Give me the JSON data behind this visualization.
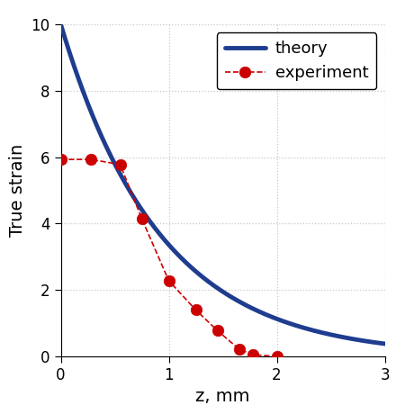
{
  "theory_x_start": 0,
  "theory_x_end": 3,
  "theory_amplitude": 10,
  "theory_decay": 1.09,
  "exp_x": [
    0.0,
    0.28,
    0.55,
    0.75,
    1.0,
    1.25,
    1.45,
    1.65,
    1.78,
    2.0
  ],
  "exp_y": [
    5.93,
    5.93,
    5.78,
    4.15,
    2.28,
    1.4,
    0.78,
    0.22,
    0.05,
    0.0
  ],
  "theory_color": "#1f3d8f",
  "exp_color": "#cc0000",
  "theory_linewidth": 3.5,
  "exp_linewidth": 1.2,
  "marker_size": 9,
  "xlabel": "z, mm",
  "ylabel": "True strain",
  "xlim": [
    0,
    3
  ],
  "ylim": [
    0,
    10
  ],
  "xticks": [
    0,
    1,
    2,
    3
  ],
  "yticks": [
    0,
    2,
    4,
    6,
    8,
    10
  ],
  "legend_theory": "theory",
  "legend_experiment": "experiment",
  "grid_color": "#c8c8c8",
  "bg_color": "#ffffff",
  "fig_width": 4.5,
  "fig_height": 4.5,
  "dpi": 100,
  "outer_border": 0.05
}
